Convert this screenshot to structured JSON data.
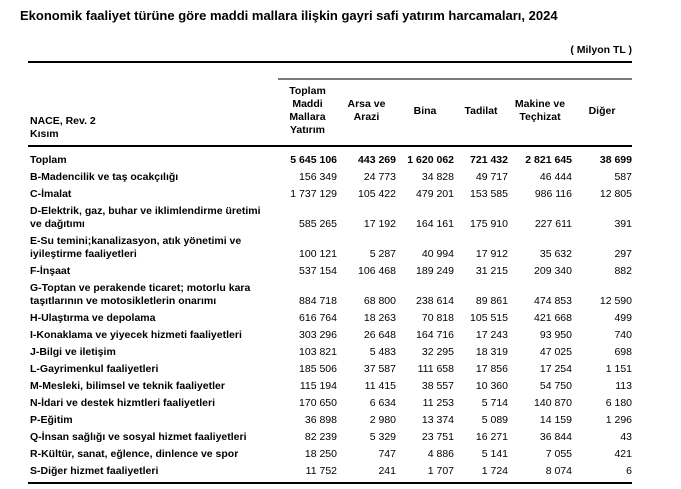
{
  "title": "Ekonomik faaliyet türüne göre maddi mallara ilişkin gayri safi yatırım harcamaları, 2024",
  "unit_label": "( Milyon TL )",
  "colors": {
    "text": "#000000",
    "rule_black": "#000000",
    "rule_gray": "#7a7a7a",
    "background": "#ffffff"
  },
  "table": {
    "row_header": {
      "line1": "NACE, Rev. 2",
      "line2": "Kısım"
    },
    "columns": [
      "Toplam Maddi Mallara Yatırım",
      "Arsa ve Arazi",
      "Bina",
      "Tadilat",
      "Makine ve Teçhizat",
      "Diğer"
    ],
    "rows": [
      {
        "label": "Toplam",
        "bold": true,
        "values": [
          "5 645 106",
          "443 269",
          "1 620 062",
          "721 432",
          "2 821 645",
          "38 699"
        ]
      },
      {
        "label": "B-Madencilik ve taş ocakçılığı",
        "bold": false,
        "values": [
          "156 349",
          "24 773",
          "34 828",
          "49 717",
          "46 444",
          "587"
        ]
      },
      {
        "label": "C-İmalat",
        "bold": false,
        "values": [
          "1 737 129",
          "105 422",
          "479 201",
          "153 585",
          "986 116",
          "12 805"
        ]
      },
      {
        "label": "D-Elektrik, gaz, buhar ve iklimlendirme üretimi ve dağıtımı",
        "bold": false,
        "values": [
          "585 265",
          "17 192",
          "164 161",
          "175 910",
          "227 611",
          "391"
        ]
      },
      {
        "label": "E-Su temini;kanalizasyon, atık yönetimi ve iyileştirme faaliyetleri",
        "bold": false,
        "values": [
          "100 121",
          "5 287",
          "40 994",
          "17 912",
          "35 632",
          "297"
        ]
      },
      {
        "label": "F-İnşaat",
        "bold": false,
        "values": [
          "537 154",
          "106 468",
          "189 249",
          "31 215",
          "209 340",
          "882"
        ]
      },
      {
        "label": "G-Toptan ve perakende ticaret; motorlu kara taşıtlarının ve motosikletlerin onarımı",
        "bold": false,
        "values": [
          "884 718",
          "68 800",
          "238 614",
          "89 861",
          "474 853",
          "12 590"
        ]
      },
      {
        "label": "H-Ulaştırma ve depolama",
        "bold": false,
        "values": [
          "616 764",
          "18 263",
          "70 818",
          "105 515",
          "421 668",
          "499"
        ]
      },
      {
        "label": "I-Konaklama ve yiyecek hizmeti faaliyetleri",
        "bold": false,
        "values": [
          "303 296",
          "26 648",
          "164 716",
          "17 243",
          "93 950",
          "740"
        ]
      },
      {
        "label": "J-Bilgi ve iletişim",
        "bold": false,
        "values": [
          "103 821",
          "5 483",
          "32 295",
          "18 319",
          "47 025",
          "698"
        ]
      },
      {
        "label": "L-Gayrimenkul faaliyetleri",
        "bold": false,
        "values": [
          "185 506",
          "37 587",
          "111 658",
          "17 856",
          "17 254",
          "1 151"
        ]
      },
      {
        "label": "M-Mesleki, bilimsel ve teknik faaliyetler",
        "bold": false,
        "values": [
          "115 194",
          "11 415",
          "38 557",
          "10 360",
          "54 750",
          "113"
        ]
      },
      {
        "label": "N-İdari ve destek hizmtleri faaliyetleri",
        "bold": false,
        "values": [
          "170 650",
          "6 634",
          "11 253",
          "5 714",
          "140 870",
          "6 180"
        ]
      },
      {
        "label": "P-Eğitim",
        "bold": false,
        "values": [
          "36 898",
          "2 980",
          "13 374",
          "5 089",
          "14 159",
          "1 296"
        ]
      },
      {
        "label": "Q-İnsan sağlığı ve sosyal hizmet faaliyetleri",
        "bold": false,
        "values": [
          "82 239",
          "5 329",
          "23 751",
          "16 271",
          "36 844",
          "43"
        ]
      },
      {
        "label": "R-Kültür, sanat, eğlence, dinlence ve spor",
        "bold": false,
        "values": [
          "18 250",
          "747",
          "4 886",
          "5 141",
          "7 055",
          "421"
        ]
      },
      {
        "label": "S-Diğer hizmet faaliyetleri",
        "bold": false,
        "values": [
          "11 752",
          "241",
          "1 707",
          "1 724",
          "8 074",
          "6"
        ]
      }
    ]
  }
}
